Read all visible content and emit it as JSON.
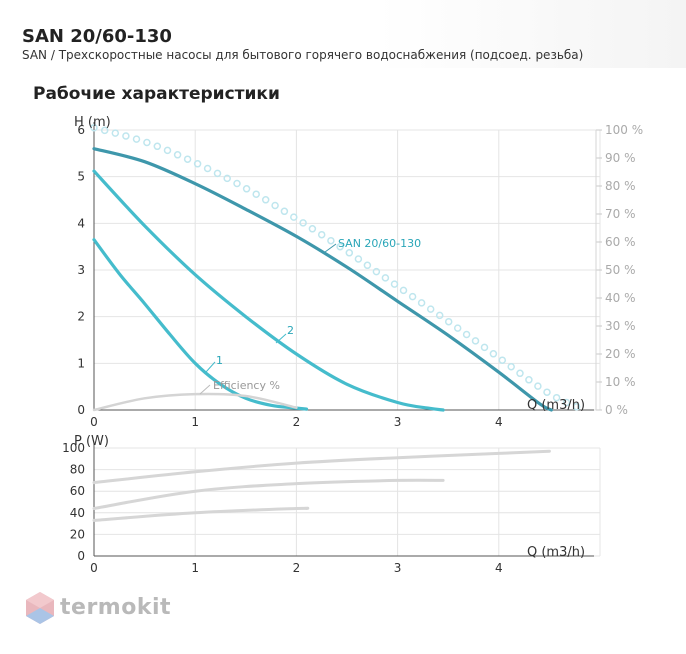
{
  "header": {
    "title": "SAN 20/60-130",
    "subtitle": "SAN / Трехскоростные насосы для бытового горячего водоснабжения (подсоед. резьба)"
  },
  "section_title": "Рабочие характеристики",
  "brand": {
    "text": "termokit"
  },
  "colors": {
    "curve_dark": "#3e97ab",
    "curve_light": "#45bccc",
    "efficiency": "#d4d4d4",
    "efficiency_dots": "#bfe6ee",
    "power": "#d6d6d6",
    "grid": "#e4e4e4"
  },
  "chart_data": [
    {
      "type": "line",
      "xlabel": "Q (m3/h)",
      "ylabel": "H (m)",
      "y2label": "",
      "xlim": [
        0,
        5
      ],
      "ylim": [
        0,
        6
      ],
      "y2lim": [
        0,
        100
      ],
      "x_ticks": [
        "0",
        "1",
        "2",
        "3",
        "4"
      ],
      "y_ticks": [
        "0",
        "1",
        "2",
        "3",
        "4",
        "5",
        "6"
      ],
      "y2_ticks": [
        "0 %",
        "10 %",
        "20 %",
        "30 %",
        "40 %",
        "50 %",
        "60 %",
        "70 %",
        "80 %",
        "90 %",
        "100 %"
      ],
      "grid": true,
      "series": [
        {
          "name": "SAN 20/60-130",
          "x": [
            0,
            0.5,
            1,
            1.5,
            2,
            2.5,
            3,
            3.5,
            4,
            4.4,
            4.52
          ],
          "y": [
            5.6,
            5.32,
            4.85,
            4.3,
            3.72,
            3.06,
            2.33,
            1.6,
            0.81,
            0.14,
            0
          ]
        },
        {
          "name": "2",
          "x": [
            0,
            0.5,
            1,
            1.5,
            2,
            2.5,
            3,
            3.3,
            3.45
          ],
          "y": [
            5.12,
            3.95,
            2.9,
            2.0,
            1.2,
            0.55,
            0.16,
            0.04,
            0.0
          ]
        },
        {
          "name": "1",
          "x": [
            0,
            0.25,
            0.5,
            0.75,
            1,
            1.25,
            1.5,
            1.75,
            2,
            2.1
          ],
          "y": [
            3.65,
            2.92,
            2.28,
            1.62,
            1.0,
            0.55,
            0.25,
            0.1,
            0.04,
            0.02
          ]
        },
        {
          "name": "Efficiency %",
          "x": [
            0,
            0.5,
            1,
            1.5,
            2
          ],
          "y": [
            0,
            0.25,
            0.34,
            0.3,
            0.05
          ]
        },
        {
          "name": "",
          "x": [
            0,
            0.5,
            1,
            1.5,
            2,
            2.5,
            3,
            3.5,
            4,
            4.5,
            4.85
          ],
          "y": [
            6.05,
            5.75,
            5.3,
            4.75,
            4.1,
            3.4,
            2.65,
            1.9,
            1.12,
            0.35,
            0.0
          ]
        }
      ],
      "annotations": [
        "SAN 20/60-130",
        "2",
        "1",
        "Efficiency %"
      ]
    },
    {
      "type": "line",
      "xlabel": "Q (m3/h)",
      "ylabel": "P (W)",
      "xlim": [
        0,
        5
      ],
      "ylim": [
        0,
        100
      ],
      "x_ticks": [
        "0",
        "1",
        "2",
        "3",
        "4"
      ],
      "y_ticks": [
        "0",
        "20",
        "40",
        "60",
        "80",
        "100"
      ],
      "grid": true,
      "series": [
        {
          "name": "",
          "x": [
            0,
            1,
            2,
            3,
            4,
            4.5
          ],
          "y": [
            68,
            78,
            86,
            91,
            95,
            97
          ]
        },
        {
          "name": "",
          "x": [
            0,
            1,
            2,
            3,
            3.45
          ],
          "y": [
            44,
            60,
            67,
            70,
            70
          ]
        },
        {
          "name": "",
          "x": [
            0,
            1,
            2,
            2.1
          ],
          "y": [
            33,
            40,
            44,
            44
          ]
        }
      ]
    }
  ]
}
